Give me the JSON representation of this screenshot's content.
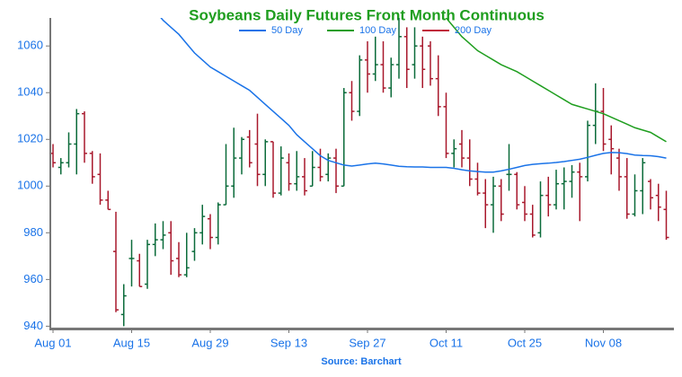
{
  "chart_data": {
    "type": "ohlc",
    "title": "Soybeans Daily Futures Front Month Continuous",
    "source": "Source: Barchart",
    "categories": [
      "Aug 01",
      null,
      null,
      null,
      null,
      null,
      null,
      null,
      null,
      null,
      "Aug 15",
      null,
      null,
      null,
      null,
      null,
      null,
      null,
      null,
      null,
      "Aug 29",
      null,
      null,
      null,
      null,
      null,
      null,
      null,
      null,
      null,
      "Sep 13",
      null,
      null,
      null,
      null,
      null,
      null,
      null,
      null,
      null,
      "Sep 27",
      null,
      null,
      null,
      null,
      null,
      null,
      null,
      null,
      null,
      "Oct 11",
      null,
      null,
      null,
      null,
      null,
      null,
      null,
      null,
      null,
      "Oct 25",
      null,
      null,
      null,
      null,
      null,
      null,
      null,
      null,
      null,
      "Nov 08",
      null,
      null,
      null,
      null,
      null,
      null,
      null,
      null
    ],
    "open": [
      1014,
      1008,
      1010,
      1018,
      1031,
      1014,
      1005,
      994,
      972,
      945,
      969,
      968,
      958,
      975,
      977,
      980,
      969,
      962,
      972,
      980,
      986,
      978,
      992,
      1000,
      1012,
      1021,
      1018,
      1005,
      1019,
      997,
      1010,
      1001,
      1004,
      1000,
      1008,
      1005,
      1012,
      1000,
      1040,
      1032,
      1054,
      1048,
      1052,
      1042,
      1052,
      1064,
      1052,
      1060,
      1060,
      1046,
      1034,
      1014,
      1018,
      1012,
      1003,
      997,
      992,
      1000,
      1005,
      1005,
      993,
      988,
      980,
      996,
      992,
      1001,
      1002,
      1006,
      1004,
      1026,
      1032,
      1020,
      1012,
      1004,
      988,
      998,
      1002,
      996,
      990
    ],
    "high": [
      1018,
      1012,
      1023,
      1033,
      1032,
      1015,
      1014,
      998,
      989,
      958,
      977,
      971,
      977,
      984,
      985,
      985,
      976,
      980,
      982,
      992,
      988,
      993,
      1018,
      1025,
      1021,
      1024,
      1031,
      1020,
      1019,
      1017,
      1014,
      1015,
      1012,
      1015,
      1016,
      1014,
      1016,
      1042,
      1045,
      1056,
      1062,
      1064,
      1062,
      1055,
      1072,
      1068,
      1068,
      1064,
      1062,
      1056,
      1040,
      1020,
      1024,
      1020,
      1010,
      1003,
      1004,
      1003,
      1018,
      1006,
      1000,
      992,
      1002,
      1004,
      1007,
      1008,
      1009,
      1010,
      1028,
      1044,
      1042,
      1026,
      1016,
      1012,
      1005,
      1012,
      1003,
      1001,
      998
    ],
    "low": [
      1008,
      1005,
      1008,
      1005,
      1010,
      1001,
      992,
      990,
      946,
      940,
      957,
      957,
      956,
      970,
      973,
      962,
      961,
      961,
      968,
      975,
      973,
      975,
      992,
      995,
      1005,
      1008,
      1000,
      1000,
      995,
      996,
      998,
      998,
      996,
      1000,
      1002,
      1002,
      997,
      1000,
      1028,
      1030,
      1040,
      1045,
      1040,
      1038,
      1046,
      1042,
      1046,
      1042,
      1043,
      1030,
      1012,
      1008,
      1008,
      1000,
      996,
      982,
      980,
      985,
      998,
      990,
      985,
      978,
      978,
      987,
      990,
      990,
      995,
      985,
      1002,
      1018,
      1015,
      1005,
      998,
      986,
      987,
      988,
      990,
      985,
      977
    ],
    "close": [
      1010,
      1010,
      1018,
      1031,
      1014,
      1004,
      994,
      990,
      947,
      953,
      969,
      957,
      975,
      977,
      979,
      968,
      962,
      965,
      980,
      987,
      978,
      992,
      1000,
      1012,
      1020,
      1010,
      1005,
      1019,
      997,
      1012,
      1001,
      1004,
      998,
      1008,
      1004,
      1012,
      1000,
      1040,
      1032,
      1054,
      1048,
      1052,
      1042,
      1052,
      1064,
      1050,
      1060,
      1050,
      1046,
      1034,
      1014,
      1016,
      1012,
      1003,
      997,
      992,
      1000,
      988,
      1005,
      992,
      988,
      979,
      996,
      992,
      1001,
      1002,
      1006,
      1004,
      1026,
      1032,
      1018,
      1016,
      1004,
      988,
      998,
      1010,
      995,
      991,
      978
    ],
    "up_color": "#0b6b3a",
    "down_color": "#a8182c",
    "lines": [
      {
        "name": "50 Day",
        "color": "#1a73e8",
        "values": [
          null,
          null,
          null,
          null,
          null,
          null,
          null,
          null,
          null,
          null,
          null,
          null,
          null,
          1075,
          1071,
          1068,
          1065,
          1061,
          1057,
          1054,
          1051,
          1049,
          1047,
          1045,
          1043,
          1041,
          1038,
          1035,
          1032,
          1029,
          1026,
          1022,
          1019,
          1016,
          1013,
          1011,
          1010,
          1009,
          1008.6,
          1009,
          1009.5,
          1009.8,
          1009.5,
          1009,
          1008.5,
          1008.3,
          1008.2,
          1008.2,
          1008,
          1008,
          1008,
          1007.6,
          1007,
          1006.5,
          1006.2,
          1006,
          1006,
          1006.5,
          1007.2,
          1008,
          1008.8,
          1009.3,
          1009.6,
          1009.8,
          1010.1,
          1010.5,
          1011,
          1011.5,
          1012.3,
          1013.2,
          1014,
          1014.4,
          1014.3,
          1013.9,
          1013.3,
          1013.1,
          1013,
          1012.6,
          1012
        ]
      },
      {
        "name": "100 Day",
        "color": "#1f9e1f",
        "values": [
          null,
          null,
          null,
          null,
          null,
          null,
          null,
          null,
          null,
          null,
          null,
          null,
          null,
          null,
          null,
          null,
          null,
          null,
          null,
          null,
          null,
          null,
          null,
          null,
          null,
          null,
          null,
          null,
          null,
          null,
          null,
          null,
          null,
          null,
          null,
          null,
          null,
          null,
          null,
          null,
          null,
          null,
          null,
          null,
          null,
          null,
          null,
          null,
          null,
          1075,
          1072,
          1068,
          1064,
          1061,
          1058,
          1056,
          1054,
          1052,
          1050.5,
          1049,
          1047,
          1045,
          1043,
          1041,
          1039,
          1037,
          1035,
          1034,
          1033,
          1032,
          1031,
          1029.5,
          1028,
          1026.5,
          1025,
          1024,
          1023,
          1021,
          1019
        ]
      },
      {
        "name": "200 Day",
        "color": "#c0213a",
        "values": [
          null,
          null,
          null,
          null,
          null,
          null,
          null,
          null,
          null,
          null,
          null,
          null,
          null,
          null,
          null,
          null,
          null,
          null,
          null,
          null,
          null,
          null,
          null,
          null,
          null,
          null,
          null,
          null,
          null,
          null,
          null,
          null,
          null,
          null,
          null,
          null,
          null,
          null,
          null,
          null,
          null,
          null,
          null,
          null,
          null,
          null,
          null,
          null,
          null,
          null,
          null,
          null,
          null,
          null,
          null,
          null,
          null,
          null,
          null,
          null,
          null,
          null,
          null,
          null,
          null,
          null,
          null,
          null,
          null,
          null,
          null,
          null,
          null,
          null,
          null,
          null,
          null,
          null,
          null
        ]
      }
    ],
    "ylim": [
      939,
      1072
    ],
    "yticks": [
      940,
      960,
      980,
      1000,
      1020,
      1040,
      1060
    ],
    "grid": false,
    "legend": "top"
  }
}
